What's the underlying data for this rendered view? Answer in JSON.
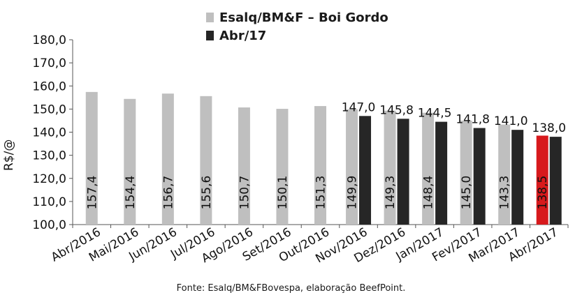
{
  "chart_data": {
    "type": "bar",
    "title": "",
    "ylabel": "R$/@",
    "xlabel": "",
    "ylim": [
      100,
      180
    ],
    "yticks": [
      "100,0",
      "110,0",
      "120,0",
      "130,0",
      "140,0",
      "150,0",
      "160,0",
      "170,0",
      "180,0"
    ],
    "categories": [
      "Abr/2016",
      "Mai/2016",
      "Jun/2016",
      "Jul/2016",
      "Ago/2016",
      "Set/2016",
      "Out/2016",
      "Nov/2016",
      "Dez/2016",
      "Jan/2017",
      "Fev/2017",
      "Mar/2017",
      "Abr/2017"
    ],
    "series": [
      {
        "name": "Esalq/BM&F – Boi Gordo",
        "color": "#bfbfbf",
        "highlight_color": "#d7191c",
        "highlight_index": 12,
        "values": [
          157.4,
          154.4,
          156.7,
          155.6,
          150.7,
          150.1,
          151.3,
          149.9,
          149.3,
          148.4,
          145.0,
          143.3,
          138.5
        ],
        "labels": [
          "157,4",
          "154,4",
          "156,7",
          "155,6",
          "150,7",
          "150,1",
          "151,3",
          "149,9",
          "149,3",
          "148,4",
          "145,0",
          "143,3",
          "138,5"
        ]
      },
      {
        "name": "Abr/17",
        "color": "#262626",
        "values": [
          null,
          null,
          null,
          null,
          null,
          null,
          null,
          147.0,
          145.8,
          144.5,
          141.8,
          141.0,
          138.0
        ],
        "labels": [
          "",
          "",
          "",
          "",
          "",
          "",
          "",
          "147,0",
          "145,8",
          "144,5",
          "141,8",
          "141,0",
          "138,0"
        ]
      }
    ],
    "legend": "top",
    "grid": false,
    "source": "Fonte: Esalq/BM&FBovespa, elaboração BeefPoint."
  }
}
